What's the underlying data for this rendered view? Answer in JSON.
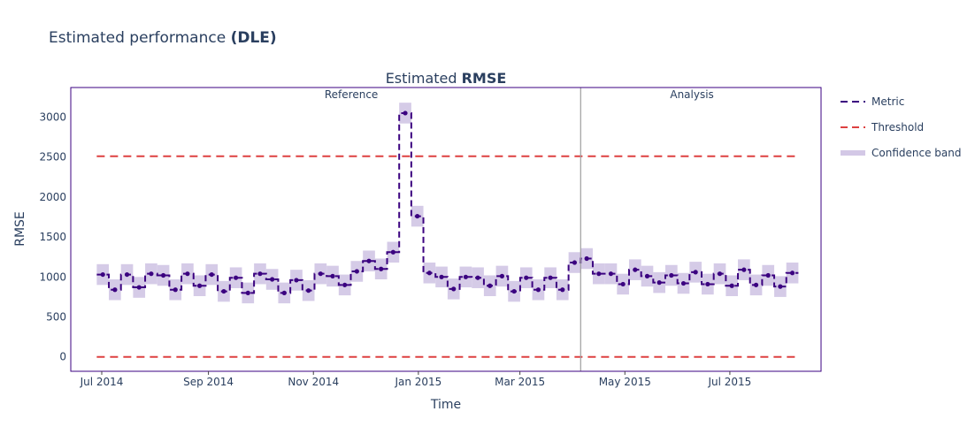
{
  "page": {
    "title_prefix": "Estimated performance ",
    "title_bold": "(DLE)"
  },
  "chart_data": {
    "type": "line",
    "title_prefix": "Estimated ",
    "title_bold": "RMSE",
    "xlabel": "Time",
    "ylabel": "RMSE",
    "ylim": [
      -180,
      3370
    ],
    "yticks": [
      0,
      500,
      1000,
      1500,
      2000,
      2500,
      3000
    ],
    "x_range_days": [
      -18,
      418
    ],
    "x_origin": "2014-07-01",
    "xticks": [
      {
        "label": "Jul 2014",
        "day": 0
      },
      {
        "label": "Sep 2014",
        "day": 62
      },
      {
        "label": "Nov 2014",
        "day": 123
      },
      {
        "label": "Jan 2015",
        "day": 184
      },
      {
        "label": "Mar 2015",
        "day": 243
      },
      {
        "label": "May 2015",
        "day": 304
      },
      {
        "label": "Jul 2015",
        "day": 365
      }
    ],
    "chunk_days": 7.03,
    "first_chunk_start_day": -2.9,
    "reference_chunk_count": 40,
    "regions": {
      "reference": "Reference",
      "analysis": "Analysis"
    },
    "threshold": {
      "upper": 2510,
      "lower": 0
    },
    "confidence_halfwidth": 130,
    "metric_values": [
      1030,
      840,
      1030,
      870,
      1040,
      1020,
      840,
      1040,
      890,
      1030,
      820,
      990,
      800,
      1040,
      970,
      800,
      960,
      830,
      1040,
      1010,
      900,
      1070,
      1200,
      1100,
      1310,
      3050,
      1760,
      1050,
      1000,
      850,
      1000,
      990,
      890,
      1010,
      820,
      990,
      840,
      990,
      840,
      1180,
      1230,
      1040,
      1040,
      910,
      1090,
      1010,
      930,
      1020,
      920,
      1060,
      910,
      1040,
      890,
      1090,
      900,
      1020,
      880,
      1050
    ],
    "legend": [
      {
        "label": "Metric",
        "color": "#3b0280",
        "style": "dash"
      },
      {
        "label": "Threshold",
        "color": "#dd4040",
        "style": "dash"
      },
      {
        "label": "Confidence band",
        "color": "#d3c8e6",
        "style": "band"
      }
    ],
    "colors": {
      "metric": "#3b0280",
      "threshold": "#dd4040",
      "band": "#d3c8e6",
      "frame": "#3b0280",
      "divider": "#9e9e9e"
    }
  }
}
